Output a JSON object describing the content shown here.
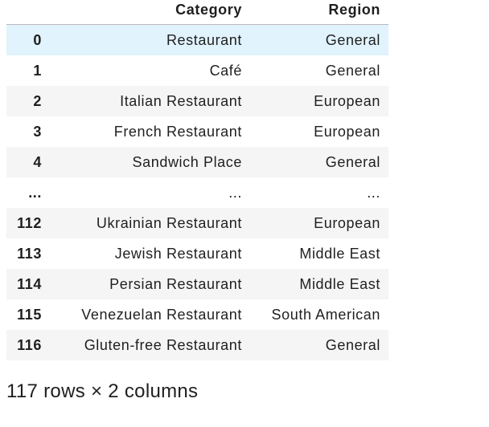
{
  "table": {
    "columns": [
      "",
      "Category",
      "Region"
    ],
    "rows": [
      {
        "index": "0",
        "category": "Restaurant",
        "region": "General"
      },
      {
        "index": "1",
        "category": "Café",
        "region": "General"
      },
      {
        "index": "2",
        "category": "Italian Restaurant",
        "region": "European"
      },
      {
        "index": "3",
        "category": "French Restaurant",
        "region": "European"
      },
      {
        "index": "4",
        "category": "Sandwich Place",
        "region": "General"
      },
      {
        "index": "...",
        "category": "...",
        "region": "..."
      },
      {
        "index": "112",
        "category": "Ukrainian Restaurant",
        "region": "European"
      },
      {
        "index": "113",
        "category": "Jewish Restaurant",
        "region": "Middle East"
      },
      {
        "index": "114",
        "category": "Persian Restaurant",
        "region": "Middle East"
      },
      {
        "index": "115",
        "category": "Venezuelan Restaurant",
        "region": "South American"
      },
      {
        "index": "116",
        "category": "Gluten-free Restaurant",
        "region": "General"
      }
    ]
  },
  "shape_text": "117 rows × 2 columns",
  "colors": {
    "header_border": "#b8b8b8",
    "row_stripe": "#f5f5f5",
    "row_hover": "#e1f3fc"
  }
}
